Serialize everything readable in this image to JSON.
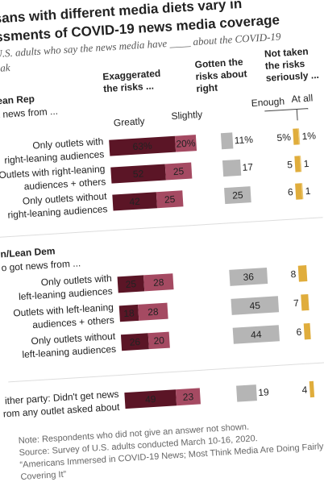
{
  "chart_data": {
    "type": "bar",
    "title": [
      "sans with different media diets vary in",
      "ssments of COVID-19 news media coverage"
    ],
    "subtitle": [
      "U.S. adults who say the news media have ____ about the COVID-19",
      "eak"
    ],
    "headers": [
      {
        "lines": [
          "Exaggerated",
          "the risks ..."
        ],
        "color": "#6b1a2e"
      },
      {
        "lines": [
          "Gotten the",
          "risks about",
          "right"
        ],
        "color": "#666666"
      },
      {
        "lines": [
          "Not taken",
          "the risks",
          "seriously ..."
        ],
        "color": "#d4a22c"
      }
    ],
    "group_labels": [
      {
        "name": "Lean Rep",
        "sub": "ot news from ...",
        "color": "#b8302f"
      },
      {
        "name": "n/Lean Dem",
        "sub": "o got news from ...",
        "color": "#1f4e79"
      }
    ],
    "categories": [
      [
        "Only outlets with",
        "right-leaning audiences"
      ],
      [
        "Outlets with right-leaning",
        "audiences + others"
      ],
      [
        "Only outlets without",
        "right-leaning audiences"
      ],
      [
        "Only outlets with",
        "left-leaning audiences"
      ],
      [
        "Outlets with left-leaning",
        "audiences + others"
      ],
      [
        "Only outlets without",
        "left-leaning audiences"
      ],
      [
        "ither party: Didn't get news",
        "rom any outlet asked about"
      ]
    ],
    "series": [
      {
        "name": "Greatly",
        "color": "#5b1526",
        "values": [
          63,
          52,
          42,
          25,
          18,
          26,
          49
        ],
        "value_labels": [
          "63%",
          "52",
          "42",
          "25",
          "18",
          "26",
          "49"
        ]
      },
      {
        "name": "Slightly",
        "color": "#a54a62",
        "values": [
          20,
          25,
          25,
          28,
          28,
          20,
          23
        ],
        "value_labels": [
          "20%",
          "25",
          "25",
          "28",
          "28",
          "20",
          "23"
        ]
      },
      {
        "color": "#b5b5b5",
        "values": [
          11,
          17,
          25,
          36,
          45,
          44,
          19
        ],
        "value_labels": [
          "11%",
          "17",
          "25",
          "36",
          "45",
          "44",
          "19"
        ]
      },
      {
        "name": "Enough",
        "color": "#e0ad3c",
        "values": [
          5,
          5,
          6,
          8,
          7,
          6,
          4
        ],
        "value_labels": [
          "5%",
          "5",
          "6",
          "8",
          "7",
          "6",
          "4"
        ]
      },
      {
        "name": "At all",
        "color": "#ecc977",
        "values": [
          1,
          1,
          1,
          null,
          null,
          null,
          null
        ],
        "value_labels": [
          "1%",
          "1",
          "1",
          null,
          null,
          null,
          null
        ]
      }
    ],
    "notes": [
      "Note: Respondents who did not give an answer not shown.",
      "Source: Survey of U.S. adults conducted March 10-16, 2020.",
      "“Americans Immersed in COVID-19 News; Most Think Media Are Doing Fairly Well",
      "Covering It”"
    ]
  }
}
